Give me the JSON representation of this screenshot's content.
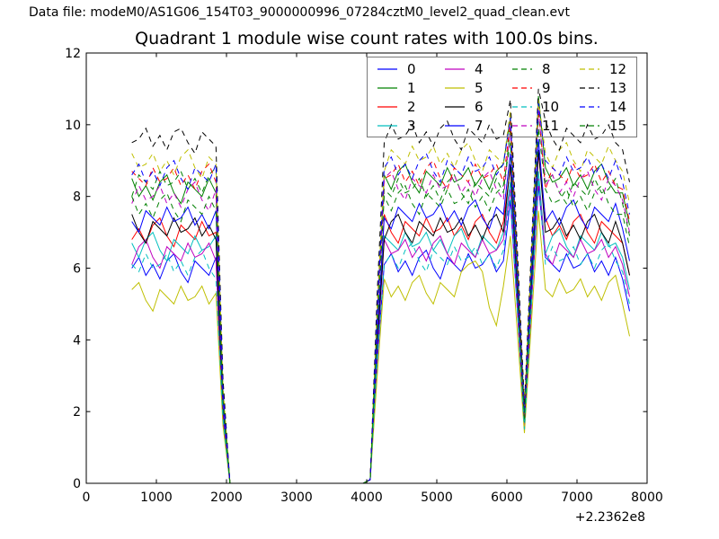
{
  "header": {
    "datafile_label": "Data file: modeM0/AS1G06_154T03_9000000996_07284cztM0_level2_quad_clean.evt"
  },
  "chart_data": {
    "type": "line",
    "title": "Quadrant 1 module wise count rates with 100.0s bins.",
    "xlabel": "",
    "ylabel": "",
    "xlim": [
      0,
      8000
    ],
    "ylim": [
      0,
      12
    ],
    "x_ticks": [
      0,
      1000,
      2000,
      3000,
      4000,
      5000,
      6000,
      7000,
      8000
    ],
    "y_ticks": [
      0,
      2,
      4,
      6,
      8,
      10,
      12
    ],
    "x_offset_label": "+2.2362e8",
    "grid": false,
    "legend_position": "upper right",
    "legend_columns": 4,
    "bin_width_seconds": "100.0",
    "x": [
      650,
      750,
      850,
      950,
      1050,
      1150,
      1250,
      1350,
      1450,
      1550,
      1650,
      1750,
      1850,
      1950,
      2050,
      3950,
      4050,
      4150,
      4250,
      4350,
      4450,
      4550,
      4650,
      4750,
      4850,
      4950,
      5050,
      5150,
      5250,
      5350,
      5450,
      5550,
      5650,
      5750,
      5850,
      5950,
      6050,
      6150,
      6250,
      6350,
      6450,
      6550,
      6650,
      6750,
      6850,
      6950,
      7050,
      7150,
      7250,
      7350,
      7450,
      7550,
      7650,
      7750
    ],
    "series": [
      {
        "name": "0",
        "color": "#0000ff",
        "dashed": false,
        "values": [
          6.0,
          6.3,
          5.8,
          6.1,
          5.7,
          6.2,
          6.4,
          5.9,
          5.6,
          6.2,
          6.0,
          5.8,
          6.3,
          1.8,
          0,
          0,
          0.1,
          3.4,
          6.1,
          6.4,
          5.9,
          6.2,
          5.8,
          6.3,
          6.5,
          6.0,
          5.7,
          6.3,
          6.1,
          5.9,
          6.4,
          6.0,
          6.1,
          6.4,
          5.9,
          6.2,
          7.9,
          4.8,
          1.6,
          5.0,
          8.3,
          6.3,
          6.1,
          5.9,
          6.4,
          6.0,
          6.1,
          6.4,
          5.9,
          6.2,
          5.8,
          6.3,
          5.7,
          4.8
        ]
      },
      {
        "name": "1",
        "color": "#008000",
        "dashed": false,
        "values": [
          8.5,
          8.0,
          8.3,
          7.9,
          8.4,
          8.6,
          8.1,
          7.8,
          8.4,
          8.2,
          8.0,
          8.5,
          8.1,
          2.5,
          0,
          0,
          0.1,
          4.7,
          8.6,
          8.2,
          8.7,
          8.9,
          8.4,
          8.1,
          8.7,
          8.5,
          8.3,
          8.8,
          8.4,
          8.5,
          8.8,
          8.3,
          8.6,
          8.2,
          8.7,
          8.9,
          10.2,
          6.0,
          1.8,
          6.3,
          10.8,
          8.8,
          8.4,
          8.5,
          8.8,
          8.3,
          8.6,
          8.2,
          8.7,
          8.9,
          8.4,
          8.1,
          8.1,
          7.2
        ]
      },
      {
        "name": "2",
        "color": "#ff0000",
        "dashed": false,
        "values": [
          6.8,
          7.1,
          6.7,
          7.2,
          7.4,
          6.9,
          6.6,
          7.2,
          7.0,
          6.8,
          7.3,
          6.9,
          7.0,
          2.1,
          0,
          0,
          0.1,
          3.9,
          7.5,
          7.0,
          6.7,
          7.3,
          7.1,
          6.9,
          7.4,
          7.0,
          7.1,
          7.4,
          6.9,
          7.2,
          6.8,
          7.3,
          7.5,
          7.0,
          6.7,
          7.3,
          8.8,
          5.3,
          1.7,
          5.5,
          9.2,
          7.4,
          6.9,
          7.2,
          6.8,
          7.3,
          7.5,
          7.0,
          6.7,
          7.3,
          7.1,
          6.9,
          6.7,
          5.8
        ]
      },
      {
        "name": "3",
        "color": "#00bfbf",
        "dashed": false,
        "values": [
          6.7,
          6.3,
          6.8,
          7.0,
          6.5,
          6.2,
          6.8,
          6.6,
          6.4,
          6.9,
          6.5,
          6.6,
          6.9,
          2.0,
          0,
          0,
          0.1,
          3.7,
          6.9,
          6.7,
          6.5,
          7.0,
          6.6,
          6.7,
          7.0,
          6.5,
          6.8,
          6.4,
          6.9,
          7.1,
          6.6,
          6.3,
          6.9,
          6.7,
          6.5,
          7.0,
          8.4,
          5.0,
          1.6,
          5.2,
          8.7,
          6.4,
          6.9,
          7.1,
          6.6,
          6.3,
          6.9,
          6.7,
          6.5,
          7.0,
          6.6,
          6.7,
          6.3,
          5.4
        ]
      },
      {
        "name": "4",
        "color": "#bf00bf",
        "dashed": false,
        "values": [
          6.1,
          6.6,
          6.8,
          6.3,
          6.0,
          6.6,
          6.4,
          6.2,
          6.7,
          6.3,
          6.4,
          6.7,
          6.2,
          1.9,
          0,
          0,
          0.1,
          3.6,
          6.8,
          6.4,
          6.5,
          6.8,
          6.3,
          6.6,
          6.2,
          6.7,
          6.9,
          6.4,
          6.1,
          6.7,
          6.5,
          6.3,
          6.8,
          6.4,
          6.5,
          6.8,
          8.2,
          4.9,
          1.5,
          5.0,
          8.5,
          6.4,
          6.1,
          6.7,
          6.5,
          6.3,
          6.8,
          6.4,
          6.5,
          6.8,
          6.3,
          6.6,
          6.1,
          5.2
        ]
      },
      {
        "name": "5",
        "color": "#bfbf00",
        "dashed": false,
        "values": [
          5.4,
          5.6,
          5.1,
          4.8,
          5.4,
          5.2,
          5.0,
          5.5,
          5.1,
          5.2,
          5.5,
          5.0,
          5.3,
          1.6,
          0,
          0,
          0.1,
          3.0,
          5.7,
          5.2,
          5.5,
          5.1,
          5.6,
          5.8,
          5.3,
          5.0,
          5.6,
          5.4,
          5.2,
          5.9,
          6.1,
          6.2,
          5.9,
          4.9,
          4.4,
          5.5,
          6.9,
          4.2,
          1.4,
          4.5,
          7.6,
          5.4,
          5.2,
          5.7,
          5.3,
          5.4,
          5.7,
          5.2,
          5.5,
          5.1,
          5.6,
          5.8,
          5.0,
          4.1
        ]
      },
      {
        "name": "6",
        "color": "#000000",
        "dashed": false,
        "values": [
          7.5,
          7.0,
          6.7,
          7.3,
          7.1,
          6.9,
          7.4,
          7.0,
          7.1,
          7.4,
          6.9,
          7.2,
          6.8,
          2.1,
          0,
          0,
          0.1,
          3.9,
          6.8,
          7.3,
          7.5,
          7.0,
          6.7,
          7.3,
          7.1,
          6.9,
          7.4,
          7.0,
          7.1,
          7.4,
          6.9,
          7.2,
          6.8,
          7.3,
          7.5,
          7.0,
          8.9,
          5.3,
          1.7,
          5.5,
          9.3,
          7.0,
          7.1,
          7.4,
          6.9,
          7.2,
          6.8,
          7.3,
          7.5,
          7.0,
          6.7,
          7.3,
          6.7,
          5.8
        ]
      },
      {
        "name": "7",
        "color": "#0000ff",
        "dashed": false,
        "values": [
          7.3,
          7.0,
          7.6,
          7.4,
          7.2,
          7.7,
          7.3,
          7.4,
          7.7,
          7.2,
          7.5,
          7.1,
          7.6,
          2.2,
          0,
          0,
          0.1,
          4.1,
          7.4,
          7.1,
          7.7,
          7.5,
          7.3,
          7.8,
          7.4,
          7.5,
          7.8,
          7.3,
          7.6,
          7.2,
          7.7,
          7.9,
          7.4,
          7.1,
          7.7,
          7.5,
          9.2,
          5.5,
          1.8,
          5.7,
          9.6,
          7.3,
          7.6,
          7.2,
          7.7,
          7.9,
          7.4,
          7.1,
          7.7,
          7.5,
          7.3,
          7.8,
          7.1,
          6.2
        ]
      },
      {
        "name": "8",
        "color": "#008000",
        "dashed": true,
        "values": [
          8.0,
          8.6,
          8.4,
          8.2,
          8.7,
          8.3,
          8.4,
          8.7,
          8.2,
          8.5,
          8.1,
          8.6,
          8.8,
          2.5,
          0,
          0,
          0.1,
          4.5,
          8.2,
          8.0,
          8.5,
          8.1,
          8.2,
          8.5,
          8.0,
          8.3,
          7.9,
          8.4,
          8.6,
          8.1,
          7.8,
          8.4,
          8.2,
          8.0,
          8.5,
          8.1,
          9.9,
          5.9,
          1.9,
          6.1,
          10.3,
          8.4,
          8.6,
          8.1,
          7.8,
          8.4,
          8.2,
          8.0,
          8.5,
          8.1,
          8.2,
          8.5,
          7.8,
          6.9
        ]
      },
      {
        "name": "9",
        "color": "#ff0000",
        "dashed": true,
        "values": [
          8.7,
          8.5,
          8.3,
          8.8,
          8.4,
          8.5,
          8.8,
          8.3,
          8.6,
          8.2,
          8.7,
          8.9,
          8.4,
          2.6,
          0,
          0,
          0.1,
          4.7,
          8.5,
          8.6,
          8.9,
          8.4,
          8.7,
          8.3,
          8.8,
          9.0,
          8.5,
          8.2,
          8.8,
          8.6,
          8.4,
          8.9,
          8.5,
          8.6,
          8.9,
          8.4,
          10.1,
          6.1,
          2.0,
          6.3,
          10.5,
          8.2,
          8.8,
          8.6,
          8.4,
          8.9,
          8.5,
          8.6,
          8.9,
          8.4,
          8.7,
          8.3,
          8.2,
          7.3
        ]
      },
      {
        "name": "10",
        "color": "#00bfbf",
        "dashed": true,
        "values": [
          6.1,
          5.9,
          6.4,
          6.0,
          6.1,
          6.4,
          5.9,
          6.2,
          5.8,
          6.3,
          6.5,
          6.0,
          5.7,
          1.8,
          0,
          0,
          0.1,
          3.5,
          6.1,
          6.4,
          6.0,
          6.5,
          6.7,
          6.2,
          5.9,
          6.5,
          6.3,
          6.1,
          6.6,
          6.2,
          6.3,
          6.6,
          6.1,
          6.4,
          6.0,
          6.5,
          8.1,
          4.8,
          1.5,
          5.0,
          8.5,
          6.1,
          6.6,
          6.2,
          6.3,
          6.6,
          6.1,
          6.4,
          6.0,
          6.5,
          6.7,
          6.2,
          5.9,
          5.0
        ]
      },
      {
        "name": "11",
        "color": "#bf00bf",
        "dashed": true,
        "values": [
          7.8,
          8.3,
          7.9,
          8.0,
          8.3,
          7.8,
          8.1,
          7.7,
          8.2,
          8.4,
          7.9,
          7.6,
          8.2,
          2.4,
          0,
          0,
          0.1,
          4.6,
          8.5,
          8.7,
          8.2,
          7.9,
          8.5,
          8.3,
          8.1,
          8.6,
          8.2,
          8.3,
          8.6,
          8.1,
          8.4,
          8.0,
          8.5,
          8.7,
          8.2,
          7.9,
          9.9,
          5.9,
          1.9,
          6.2,
          10.4,
          8.3,
          8.6,
          8.1,
          8.4,
          8.0,
          8.5,
          8.7,
          8.2,
          7.9,
          8.5,
          8.3,
          7.9,
          7.0
        ]
      },
      {
        "name": "12",
        "color": "#bfbf00",
        "dashed": true,
        "values": [
          9.2,
          8.8,
          8.9,
          9.2,
          8.7,
          9.0,
          8.6,
          9.1,
          9.3,
          8.8,
          8.5,
          9.1,
          8.9,
          2.7,
          0,
          0,
          0.1,
          5.0,
          8.7,
          9.3,
          9.1,
          8.9,
          9.4,
          9.0,
          9.1,
          9.4,
          8.9,
          9.2,
          8.8,
          9.3,
          9.5,
          9.0,
          8.7,
          9.3,
          9.1,
          8.9,
          10.4,
          6.3,
          2.1,
          6.4,
          10.7,
          9.2,
          8.8,
          9.3,
          9.5,
          9.0,
          8.7,
          9.3,
          9.1,
          8.9,
          9.4,
          9.0,
          8.7,
          7.8
        ]
      },
      {
        "name": "13",
        "color": "#000000",
        "dashed": true,
        "values": [
          9.5,
          9.6,
          9.9,
          9.4,
          9.7,
          9.3,
          9.8,
          9.9,
          9.5,
          9.2,
          9.8,
          9.6,
          9.4,
          2.9,
          0,
          0,
          0.1,
          5.3,
          9.5,
          10.0,
          9.6,
          9.7,
          10.0,
          9.5,
          9.8,
          9.4,
          9.9,
          10.1,
          9.6,
          9.3,
          9.9,
          9.7,
          9.5,
          10.0,
          9.6,
          9.7,
          10.7,
          6.5,
          2.2,
          6.6,
          11.0,
          10.1,
          9.6,
          9.3,
          9.9,
          9.7,
          9.5,
          10.0,
          9.6,
          9.7,
          10.0,
          9.5,
          9.3,
          8.4
        ]
      },
      {
        "name": "14",
        "color": "#0000ff",
        "dashed": true,
        "values": [
          8.6,
          8.9,
          8.4,
          8.7,
          8.3,
          8.8,
          9.0,
          8.5,
          8.2,
          8.8,
          8.6,
          8.4,
          8.9,
          2.6,
          0,
          0,
          0.1,
          4.8,
          8.8,
          9.1,
          8.6,
          8.9,
          8.5,
          9.0,
          9.2,
          8.7,
          8.4,
          9.0,
          8.8,
          8.6,
          9.1,
          8.7,
          8.8,
          9.1,
          8.6,
          8.9,
          10.2,
          6.1,
          2.0,
          6.3,
          10.6,
          9.0,
          8.8,
          8.6,
          9.1,
          8.7,
          8.8,
          9.1,
          8.6,
          8.9,
          8.5,
          9.0,
          8.4,
          7.5
        ]
      },
      {
        "name": "15",
        "color": "#008000",
        "dashed": true,
        "values": [
          8.0,
          7.5,
          7.8,
          7.4,
          7.9,
          8.1,
          7.6,
          7.3,
          7.9,
          7.7,
          7.5,
          8.0,
          7.6,
          2.3,
          0,
          0,
          0.1,
          4.3,
          8.0,
          7.6,
          8.1,
          8.3,
          7.8,
          7.5,
          8.1,
          7.9,
          7.7,
          8.2,
          7.8,
          7.9,
          8.2,
          7.7,
          8.0,
          7.6,
          8.1,
          8.3,
          9.5,
          5.7,
          1.8,
          5.9,
          9.9,
          8.2,
          7.8,
          7.9,
          8.2,
          7.7,
          8.0,
          7.6,
          8.1,
          8.3,
          7.8,
          7.5,
          7.5,
          6.6
        ]
      }
    ]
  }
}
